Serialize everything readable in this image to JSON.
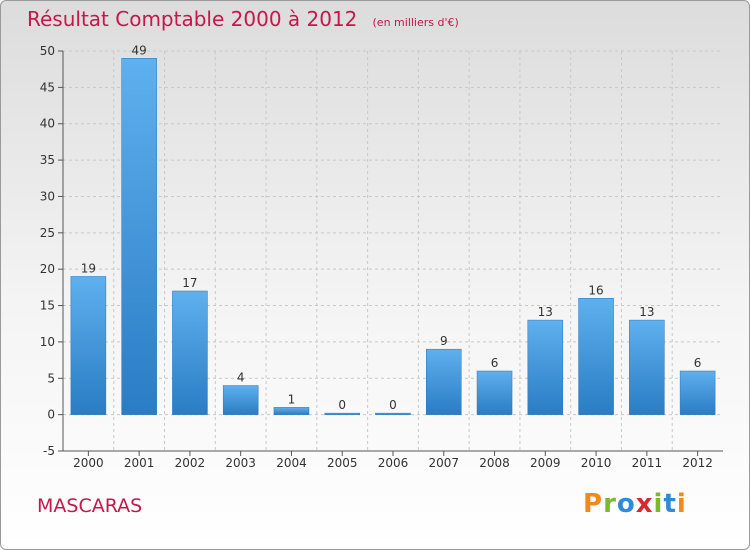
{
  "chart_data": {
    "type": "bar",
    "title": "Résultat Comptable 2000 à 2012",
    "subtitle": "(en milliers d'€)",
    "categories": [
      "2000",
      "2001",
      "2002",
      "2003",
      "2004",
      "2005",
      "2006",
      "2007",
      "2008",
      "2009",
      "2010",
      "2011",
      "2012"
    ],
    "values": [
      19,
      49,
      17,
      4,
      1,
      0,
      0,
      9,
      6,
      13,
      16,
      13,
      6
    ],
    "ylim": [
      -5,
      50
    ],
    "yticks": [
      -5,
      0,
      5,
      10,
      15,
      20,
      25,
      30,
      35,
      40,
      45,
      50
    ],
    "grid": true,
    "bar_color": "#3a8fd9"
  },
  "location": "MASCARAS",
  "logo": {
    "letters": [
      "P",
      "r",
      "o",
      "x",
      "i",
      "t",
      "i"
    ],
    "colors": [
      "#f08a1c",
      "#7cb82f",
      "#2e8bd8",
      "#d8282e",
      "#7cb82f",
      "#2e8bd8",
      "#f08a1c"
    ]
  }
}
